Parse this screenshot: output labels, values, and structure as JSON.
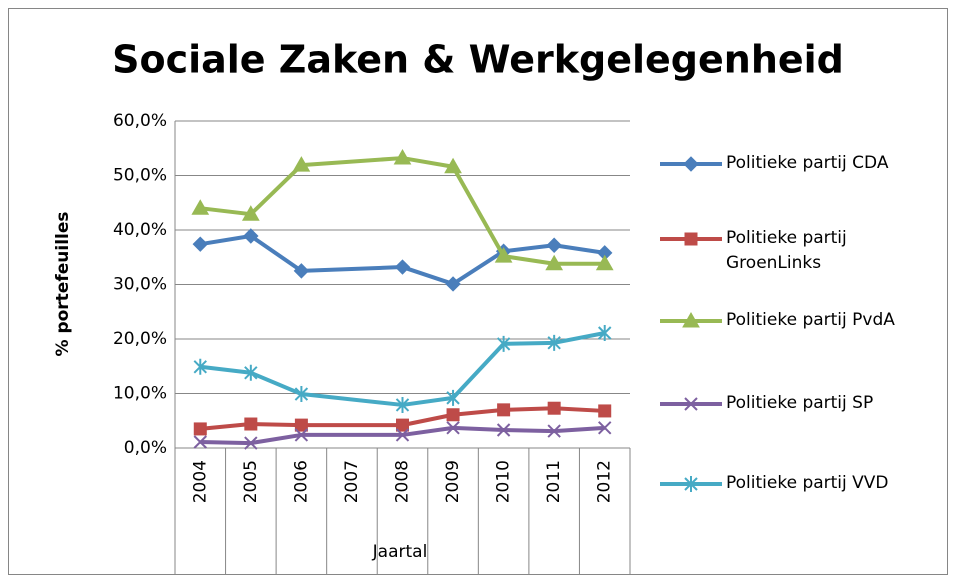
{
  "chart_data": {
    "type": "line",
    "title": "Sociale Zaken & Werkgelegenheid",
    "y_label": "% portefeuilles",
    "x_label": "Jaartal",
    "x": [
      2004,
      2005,
      2006,
      2008,
      2009,
      2010,
      2011,
      2012
    ],
    "xlim": [
      2003.5,
      2012.5
    ],
    "xticks": [
      2004,
      2005,
      2006,
      2007,
      2008,
      2009,
      2010,
      2011,
      2012
    ],
    "ylim": [
      0,
      60
    ],
    "yticks": [
      {
        "value": 0,
        "label": "0,0%"
      },
      {
        "value": 10,
        "label": "10,0%"
      },
      {
        "value": 20,
        "label": "20,0%"
      },
      {
        "value": 30,
        "label": "30,0%"
      },
      {
        "value": 40,
        "label": "40,0%"
      },
      {
        "value": 50,
        "label": "50,0%"
      },
      {
        "value": 60,
        "label": "60,0%"
      }
    ],
    "grid": true,
    "legend": "right",
    "series": [
      {
        "name": "Politieke partij CDA",
        "color": "#4a7ebb",
        "marker": "diamond",
        "values": [
          37.4,
          38.9,
          32.5,
          33.2,
          30.1,
          36.1,
          37.2,
          35.8
        ]
      },
      {
        "name": "Politieke partij GroenLinks",
        "color": "#be4b48",
        "marker": "square",
        "values": [
          3.5,
          4.4,
          4.2,
          4.2,
          6.1,
          7.0,
          7.3,
          6.8
        ]
      },
      {
        "name": "Politieke partij PvdA",
        "color": "#98b954",
        "marker": "triangle",
        "values": [
          44.0,
          42.9,
          51.9,
          53.2,
          51.6,
          35.2,
          33.8,
          33.8
        ]
      },
      {
        "name": "Politieke partij SP",
        "color": "#7d60a0",
        "marker": "x",
        "values": [
          1.1,
          0.9,
          2.4,
          2.4,
          3.7,
          3.3,
          3.1,
          3.7
        ]
      },
      {
        "name": "Politieke partij VVD",
        "color": "#46aac5",
        "marker": "star",
        "values": [
          14.9,
          13.8,
          9.9,
          7.9,
          9.2,
          19.1,
          19.3,
          21.1
        ]
      }
    ]
  }
}
